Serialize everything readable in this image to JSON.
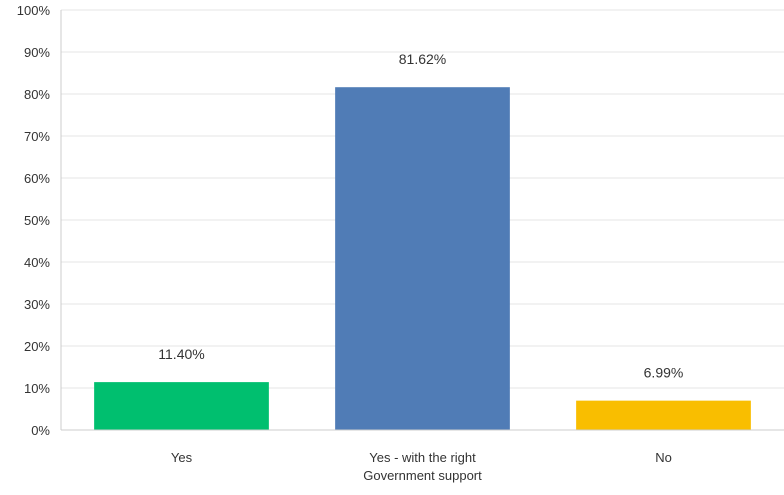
{
  "chart_data": {
    "type": "bar",
    "title": "",
    "xlabel": "",
    "ylabel": "",
    "ylim": [
      0,
      100
    ],
    "yticks": [
      "0%",
      "10%",
      "20%",
      "30%",
      "40%",
      "50%",
      "60%",
      "70%",
      "80%",
      "90%",
      "100%"
    ],
    "grid": true,
    "categories": [
      [
        "Yes"
      ],
      [
        "Yes - with the right",
        "Government support"
      ],
      [
        "No"
      ]
    ],
    "values": [
      11.4,
      81.62,
      6.99
    ],
    "data_labels": [
      "11.40%",
      "81.62%",
      "6.99%"
    ],
    "colors": [
      "#00bf6f",
      "#507cb6",
      "#f9be00"
    ]
  }
}
